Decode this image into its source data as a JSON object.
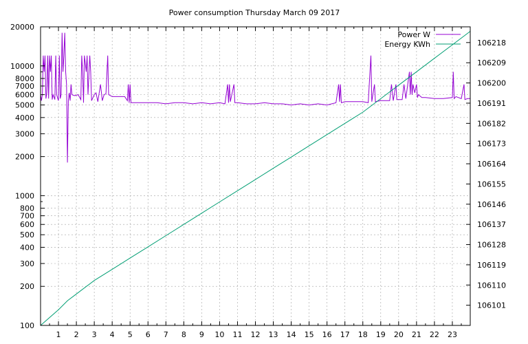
{
  "chart_data": {
    "type": "line",
    "title": "Power consumption Thursday March 09 2017",
    "legend_position": "top-right",
    "grid": true,
    "x_axis": {
      "range": [
        0,
        24
      ],
      "ticks": [
        1,
        2,
        3,
        4,
        5,
        6,
        7,
        8,
        9,
        10,
        11,
        12,
        13,
        14,
        15,
        16,
        17,
        18,
        19,
        20,
        21,
        22,
        23
      ]
    },
    "y_left": {
      "scale": "log",
      "range": [
        100,
        20000
      ],
      "ticks": [
        100,
        200,
        300,
        400,
        500,
        600,
        700,
        800,
        1000,
        2000,
        3000,
        4000,
        5000,
        6000,
        7000,
        8000,
        10000,
        20000
      ],
      "tick_labels": [
        "100",
        "200",
        "300",
        "400",
        "500",
        "600",
        "700",
        "800",
        "1000",
        "2000",
        "3000",
        "4000",
        "5000",
        "6000",
        "7000",
        "8000",
        "10000",
        "20000"
      ]
    },
    "y_right": {
      "scale": "linear",
      "range": [
        106092,
        106225
      ],
      "ticks": [
        106101,
        106110,
        106119,
        106128,
        106137,
        106146,
        106155,
        106164,
        106173,
        106182,
        106191,
        106200,
        106209,
        106218
      ]
    },
    "series": [
      {
        "name": "Power W",
        "color": "#9400d3",
        "axis": "left",
        "points": [
          [
            0.0,
            6000
          ],
          [
            0.05,
            5400
          ],
          [
            0.1,
            6000
          ],
          [
            0.15,
            12000
          ],
          [
            0.2,
            9000
          ],
          [
            0.25,
            12000
          ],
          [
            0.3,
            5600
          ],
          [
            0.35,
            6200
          ],
          [
            0.4,
            12000
          ],
          [
            0.45,
            5600
          ],
          [
            0.5,
            12000
          ],
          [
            0.55,
            9000
          ],
          [
            0.6,
            12000
          ],
          [
            0.65,
            5500
          ],
          [
            0.7,
            6000
          ],
          [
            0.8,
            5500
          ],
          [
            0.85,
            12000
          ],
          [
            0.9,
            6000
          ],
          [
            1.0,
            5400
          ],
          [
            1.05,
            12000
          ],
          [
            1.1,
            5600
          ],
          [
            1.15,
            6000
          ],
          [
            1.2,
            18000
          ],
          [
            1.25,
            9000
          ],
          [
            1.3,
            12000
          ],
          [
            1.35,
            18000
          ],
          [
            1.4,
            9000
          ],
          [
            1.45,
            7200
          ],
          [
            1.5,
            1800
          ],
          [
            1.55,
            5400
          ],
          [
            1.6,
            6200
          ],
          [
            1.65,
            5400
          ],
          [
            1.7,
            7200
          ],
          [
            1.75,
            6000
          ],
          [
            1.9,
            5900
          ],
          [
            2.1,
            6000
          ],
          [
            2.25,
            5500
          ],
          [
            2.3,
            12000
          ],
          [
            2.35,
            9000
          ],
          [
            2.4,
            5200
          ],
          [
            2.45,
            12000
          ],
          [
            2.55,
            9000
          ],
          [
            2.6,
            12000
          ],
          [
            2.65,
            6000
          ],
          [
            2.75,
            12000
          ],
          [
            2.8,
            9000
          ],
          [
            2.85,
            5400
          ],
          [
            3.0,
            6000
          ],
          [
            3.1,
            6200
          ],
          [
            3.2,
            5300
          ],
          [
            3.35,
            7200
          ],
          [
            3.45,
            5400
          ],
          [
            3.55,
            6000
          ],
          [
            3.65,
            6100
          ],
          [
            3.75,
            12000
          ],
          [
            3.8,
            6000
          ],
          [
            4.0,
            5800
          ],
          [
            4.5,
            5800
          ],
          [
            4.7,
            5800
          ],
          [
            4.85,
            5400
          ],
          [
            4.9,
            7200
          ],
          [
            4.95,
            5200
          ],
          [
            5.0,
            7200
          ],
          [
            5.05,
            5200
          ],
          [
            5.5,
            5200
          ],
          [
            6.0,
            5200
          ],
          [
            6.5,
            5200
          ],
          [
            7.0,
            5100
          ],
          [
            7.5,
            5200
          ],
          [
            8.0,
            5200
          ],
          [
            8.5,
            5100
          ],
          [
            9.0,
            5200
          ],
          [
            9.5,
            5100
          ],
          [
            10.0,
            5200
          ],
          [
            10.3,
            5100
          ],
          [
            10.45,
            7200
          ],
          [
            10.5,
            5200
          ],
          [
            10.55,
            7200
          ],
          [
            10.6,
            5300
          ],
          [
            10.8,
            7200
          ],
          [
            10.85,
            5200
          ],
          [
            11.0,
            5200
          ],
          [
            11.5,
            5100
          ],
          [
            12.0,
            5100
          ],
          [
            12.5,
            5200
          ],
          [
            13.0,
            5100
          ],
          [
            13.5,
            5100
          ],
          [
            14.0,
            5000
          ],
          [
            14.5,
            5100
          ],
          [
            15.0,
            5000
          ],
          [
            15.5,
            5100
          ],
          [
            16.0,
            5000
          ],
          [
            16.5,
            5200
          ],
          [
            16.65,
            7200
          ],
          [
            16.7,
            5300
          ],
          [
            16.75,
            7200
          ],
          [
            16.8,
            5200
          ],
          [
            17.0,
            5300
          ],
          [
            17.5,
            5300
          ],
          [
            18.0,
            5300
          ],
          [
            18.3,
            5200
          ],
          [
            18.45,
            12000
          ],
          [
            18.5,
            5300
          ],
          [
            18.65,
            7200
          ],
          [
            18.7,
            5300
          ],
          [
            19.0,
            5400
          ],
          [
            19.5,
            5400
          ],
          [
            19.6,
            7200
          ],
          [
            19.7,
            5400
          ],
          [
            19.85,
            7200
          ],
          [
            19.9,
            5500
          ],
          [
            20.0,
            5500
          ],
          [
            20.2,
            5500
          ],
          [
            20.3,
            7200
          ],
          [
            20.4,
            5600
          ],
          [
            20.6,
            9000
          ],
          [
            20.65,
            6000
          ],
          [
            20.7,
            9000
          ],
          [
            20.75,
            6000
          ],
          [
            20.8,
            7200
          ],
          [
            20.9,
            6200
          ],
          [
            21.0,
            7200
          ],
          [
            21.05,
            5700
          ],
          [
            21.1,
            6000
          ],
          [
            21.3,
            5700
          ],
          [
            21.5,
            5700
          ],
          [
            22.0,
            5600
          ],
          [
            22.5,
            5600
          ],
          [
            23.0,
            5700
          ],
          [
            23.05,
            9000
          ],
          [
            23.1,
            5600
          ],
          [
            23.2,
            5800
          ],
          [
            23.5,
            5600
          ],
          [
            23.65,
            7200
          ],
          [
            23.7,
            5500
          ],
          [
            23.85,
            5600
          ],
          [
            24.0,
            5600
          ]
        ]
      },
      {
        "name": "Energy KWh",
        "color": "#009e73",
        "axis": "right",
        "points": [
          [
            0.0,
            106092
          ],
          [
            1.0,
            106099
          ],
          [
            1.5,
            106103
          ],
          [
            2.0,
            106106
          ],
          [
            3.0,
            106112
          ],
          [
            4.0,
            106117
          ],
          [
            5.0,
            106122
          ],
          [
            6.0,
            106127
          ],
          [
            7.0,
            106132
          ],
          [
            8.0,
            106137
          ],
          [
            9.0,
            106142
          ],
          [
            10.0,
            106147
          ],
          [
            11.0,
            106152
          ],
          [
            12.0,
            106157
          ],
          [
            13.0,
            106162
          ],
          [
            14.0,
            106167
          ],
          [
            15.0,
            106172
          ],
          [
            16.0,
            106177
          ],
          [
            17.0,
            106182
          ],
          [
            18.0,
            106187
          ],
          [
            19.0,
            106193
          ],
          [
            20.0,
            106199
          ],
          [
            21.0,
            106205
          ],
          [
            22.0,
            106211
          ],
          [
            23.0,
            106217
          ],
          [
            24.0,
            106223
          ]
        ]
      }
    ]
  }
}
